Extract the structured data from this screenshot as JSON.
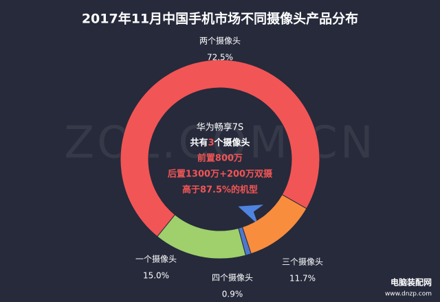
{
  "chart_data": {
    "type": "donut",
    "title": "2017年11月中国手机市场不同摄像头产品分布",
    "categories": [
      "两个摄像头",
      "三个摄像头",
      "四个摄像头",
      "一个摄像头"
    ],
    "values": [
      72.5,
      11.7,
      0.9,
      15.0
    ],
    "value_labels": [
      "72.5%",
      "11.7%",
      "0.9%",
      "15.0%"
    ],
    "colors": [
      "#f25555",
      "#f98d3e",
      "#4f78cc",
      "#9fd06c"
    ],
    "center_text": {
      "model": "华为畅享7S",
      "count": [
        "共有",
        "3",
        "个摄像头"
      ],
      "front": "前置800万",
      "rear": "后置1300万+200万双摄",
      "rank": "高于87.5%的机型"
    },
    "watermark": "ZOL.COM.CN",
    "corner_mark": {
      "name": "电脑装配网",
      "url": "www.dnzp.com"
    }
  }
}
